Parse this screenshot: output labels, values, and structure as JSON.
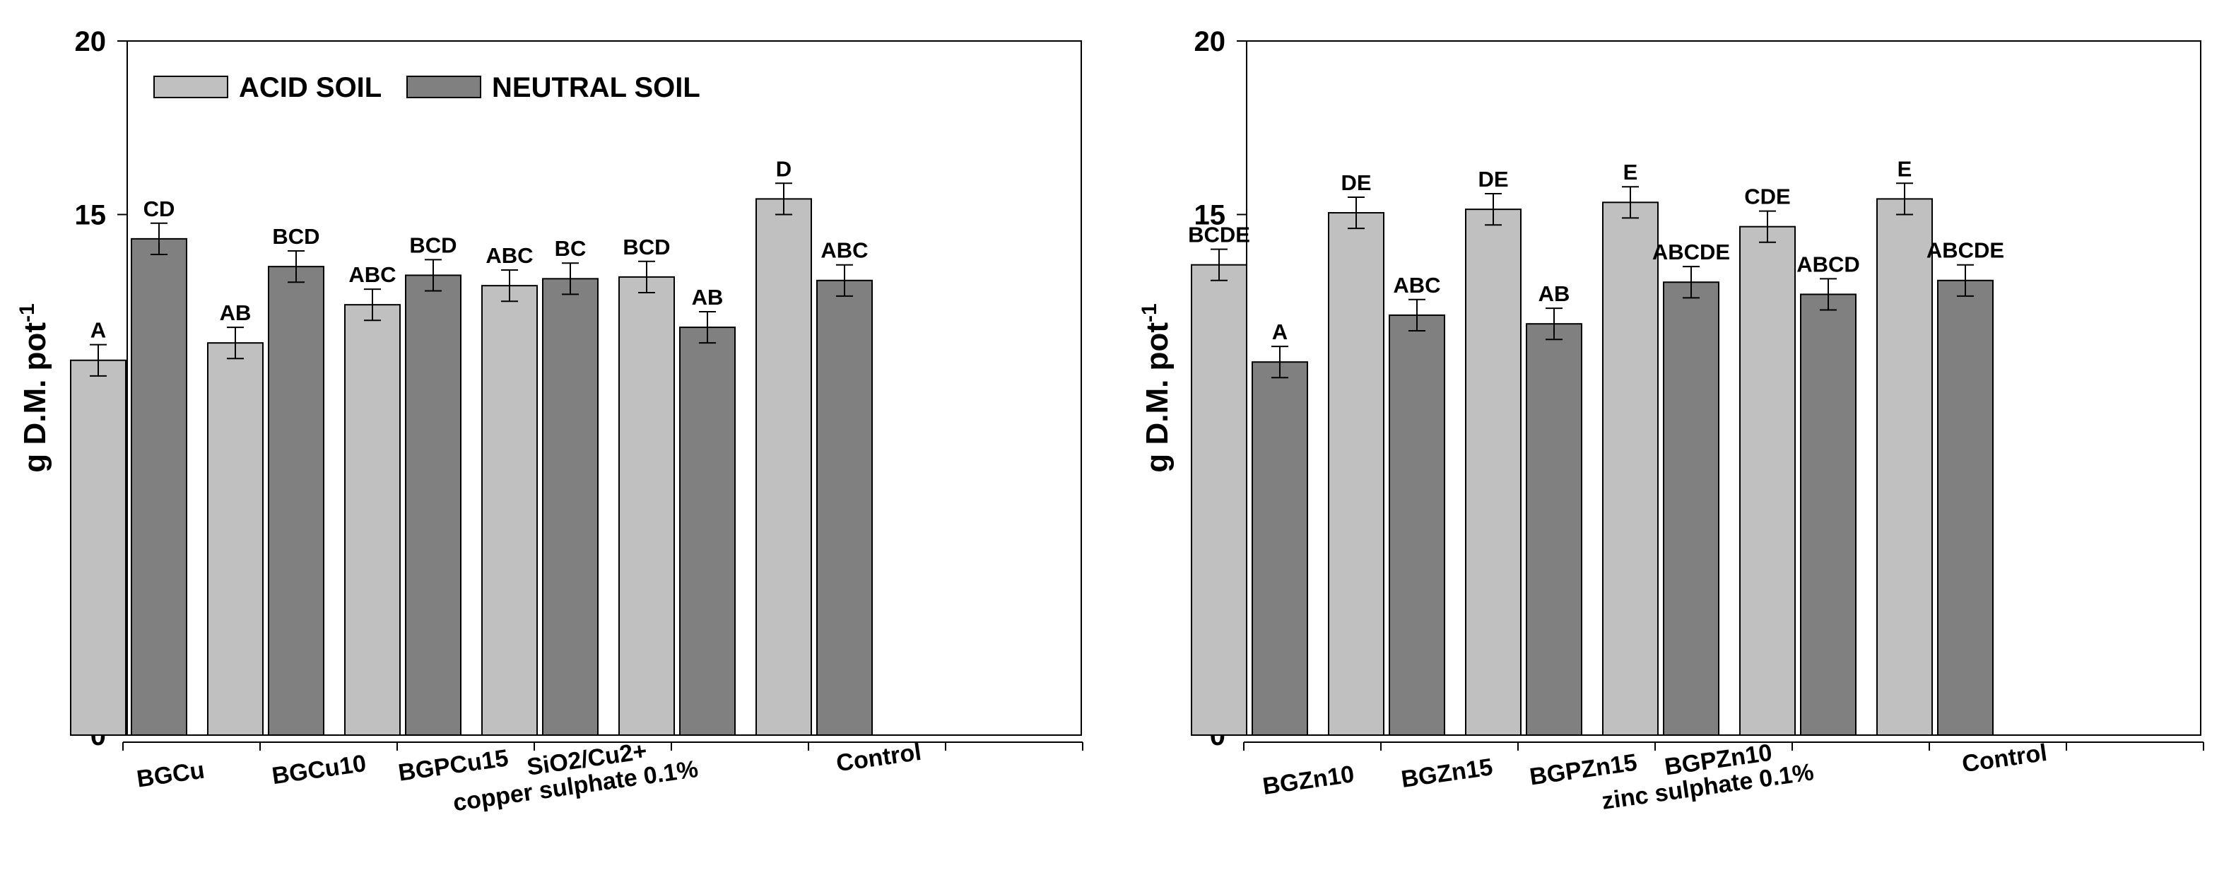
{
  "chart_data": [
    {
      "type": "bar",
      "ylabel": "g D.M. pot",
      "ylabel_superscript": "-1",
      "ylim": [
        0,
        20
      ],
      "yticks": [
        "0",
        "5",
        "10",
        "15",
        "20"
      ],
      "grid": false,
      "legend": {
        "placement": "top-left"
      },
      "categories": [
        [
          "BGCu"
        ],
        [
          "BGCu10"
        ],
        [
          "BGPCu15"
        ],
        [
          "SiO2/Cu2+",
          "copper sulphate 0.1%"
        ],
        [],
        [
          "Control"
        ]
      ],
      "series": [
        {
          "name": "ACID SOIL",
          "color": "#c0c0c0",
          "values": [
            10.8,
            11.3,
            12.4,
            12.95,
            13.2,
            15.45
          ],
          "errors": [
            0.45,
            0.45,
            0.45,
            0.45,
            0.45,
            0.45
          ],
          "letters": [
            "A",
            "AB",
            "ABC",
            "ABC",
            "BCD",
            "D"
          ]
        },
        {
          "name": "NEUTRAL SOIL",
          "color": "#808080",
          "values": [
            14.3,
            13.5,
            13.25,
            13.15,
            11.75,
            13.1
          ],
          "errors": [
            0.45,
            0.45,
            0.45,
            0.45,
            0.45,
            0.45
          ],
          "letters": [
            "CD",
            "BCD",
            "BCD",
            "BC",
            "AB",
            "ABC"
          ]
        }
      ]
    },
    {
      "type": "bar",
      "ylabel": "g D.M. pot",
      "ylabel_superscript": "-1",
      "ylim": [
        0,
        20
      ],
      "yticks": [
        "0",
        "5",
        "10",
        "15",
        "20"
      ],
      "grid": false,
      "categories": [
        [
          "BGZn10"
        ],
        [
          "BGZn15"
        ],
        [
          "BGPZn15"
        ],
        [
          "BGPZn10",
          "zinc sulphate 0.1%"
        ],
        [],
        [
          "Control"
        ]
      ],
      "series": [
        {
          "name": "",
          "color": "#c0c0c0",
          "values": [
            13.55,
            15.05,
            15.15,
            15.35,
            14.65,
            15.45
          ],
          "errors": [
            0.45,
            0.45,
            0.45,
            0.45,
            0.45,
            0.45
          ],
          "letters": [
            "BCDE",
            "DE",
            "DE",
            "E",
            "CDE",
            "E"
          ]
        },
        {
          "name": "",
          "color": "#808080",
          "values": [
            10.75,
            12.1,
            11.85,
            13.05,
            12.7,
            13.1
          ],
          "errors": [
            0.45,
            0.45,
            0.45,
            0.45,
            0.45,
            0.45
          ],
          "letters": [
            "A",
            "ABC",
            "AB",
            "ABCDE",
            "ABCD",
            "ABCDE"
          ]
        }
      ]
    }
  ]
}
